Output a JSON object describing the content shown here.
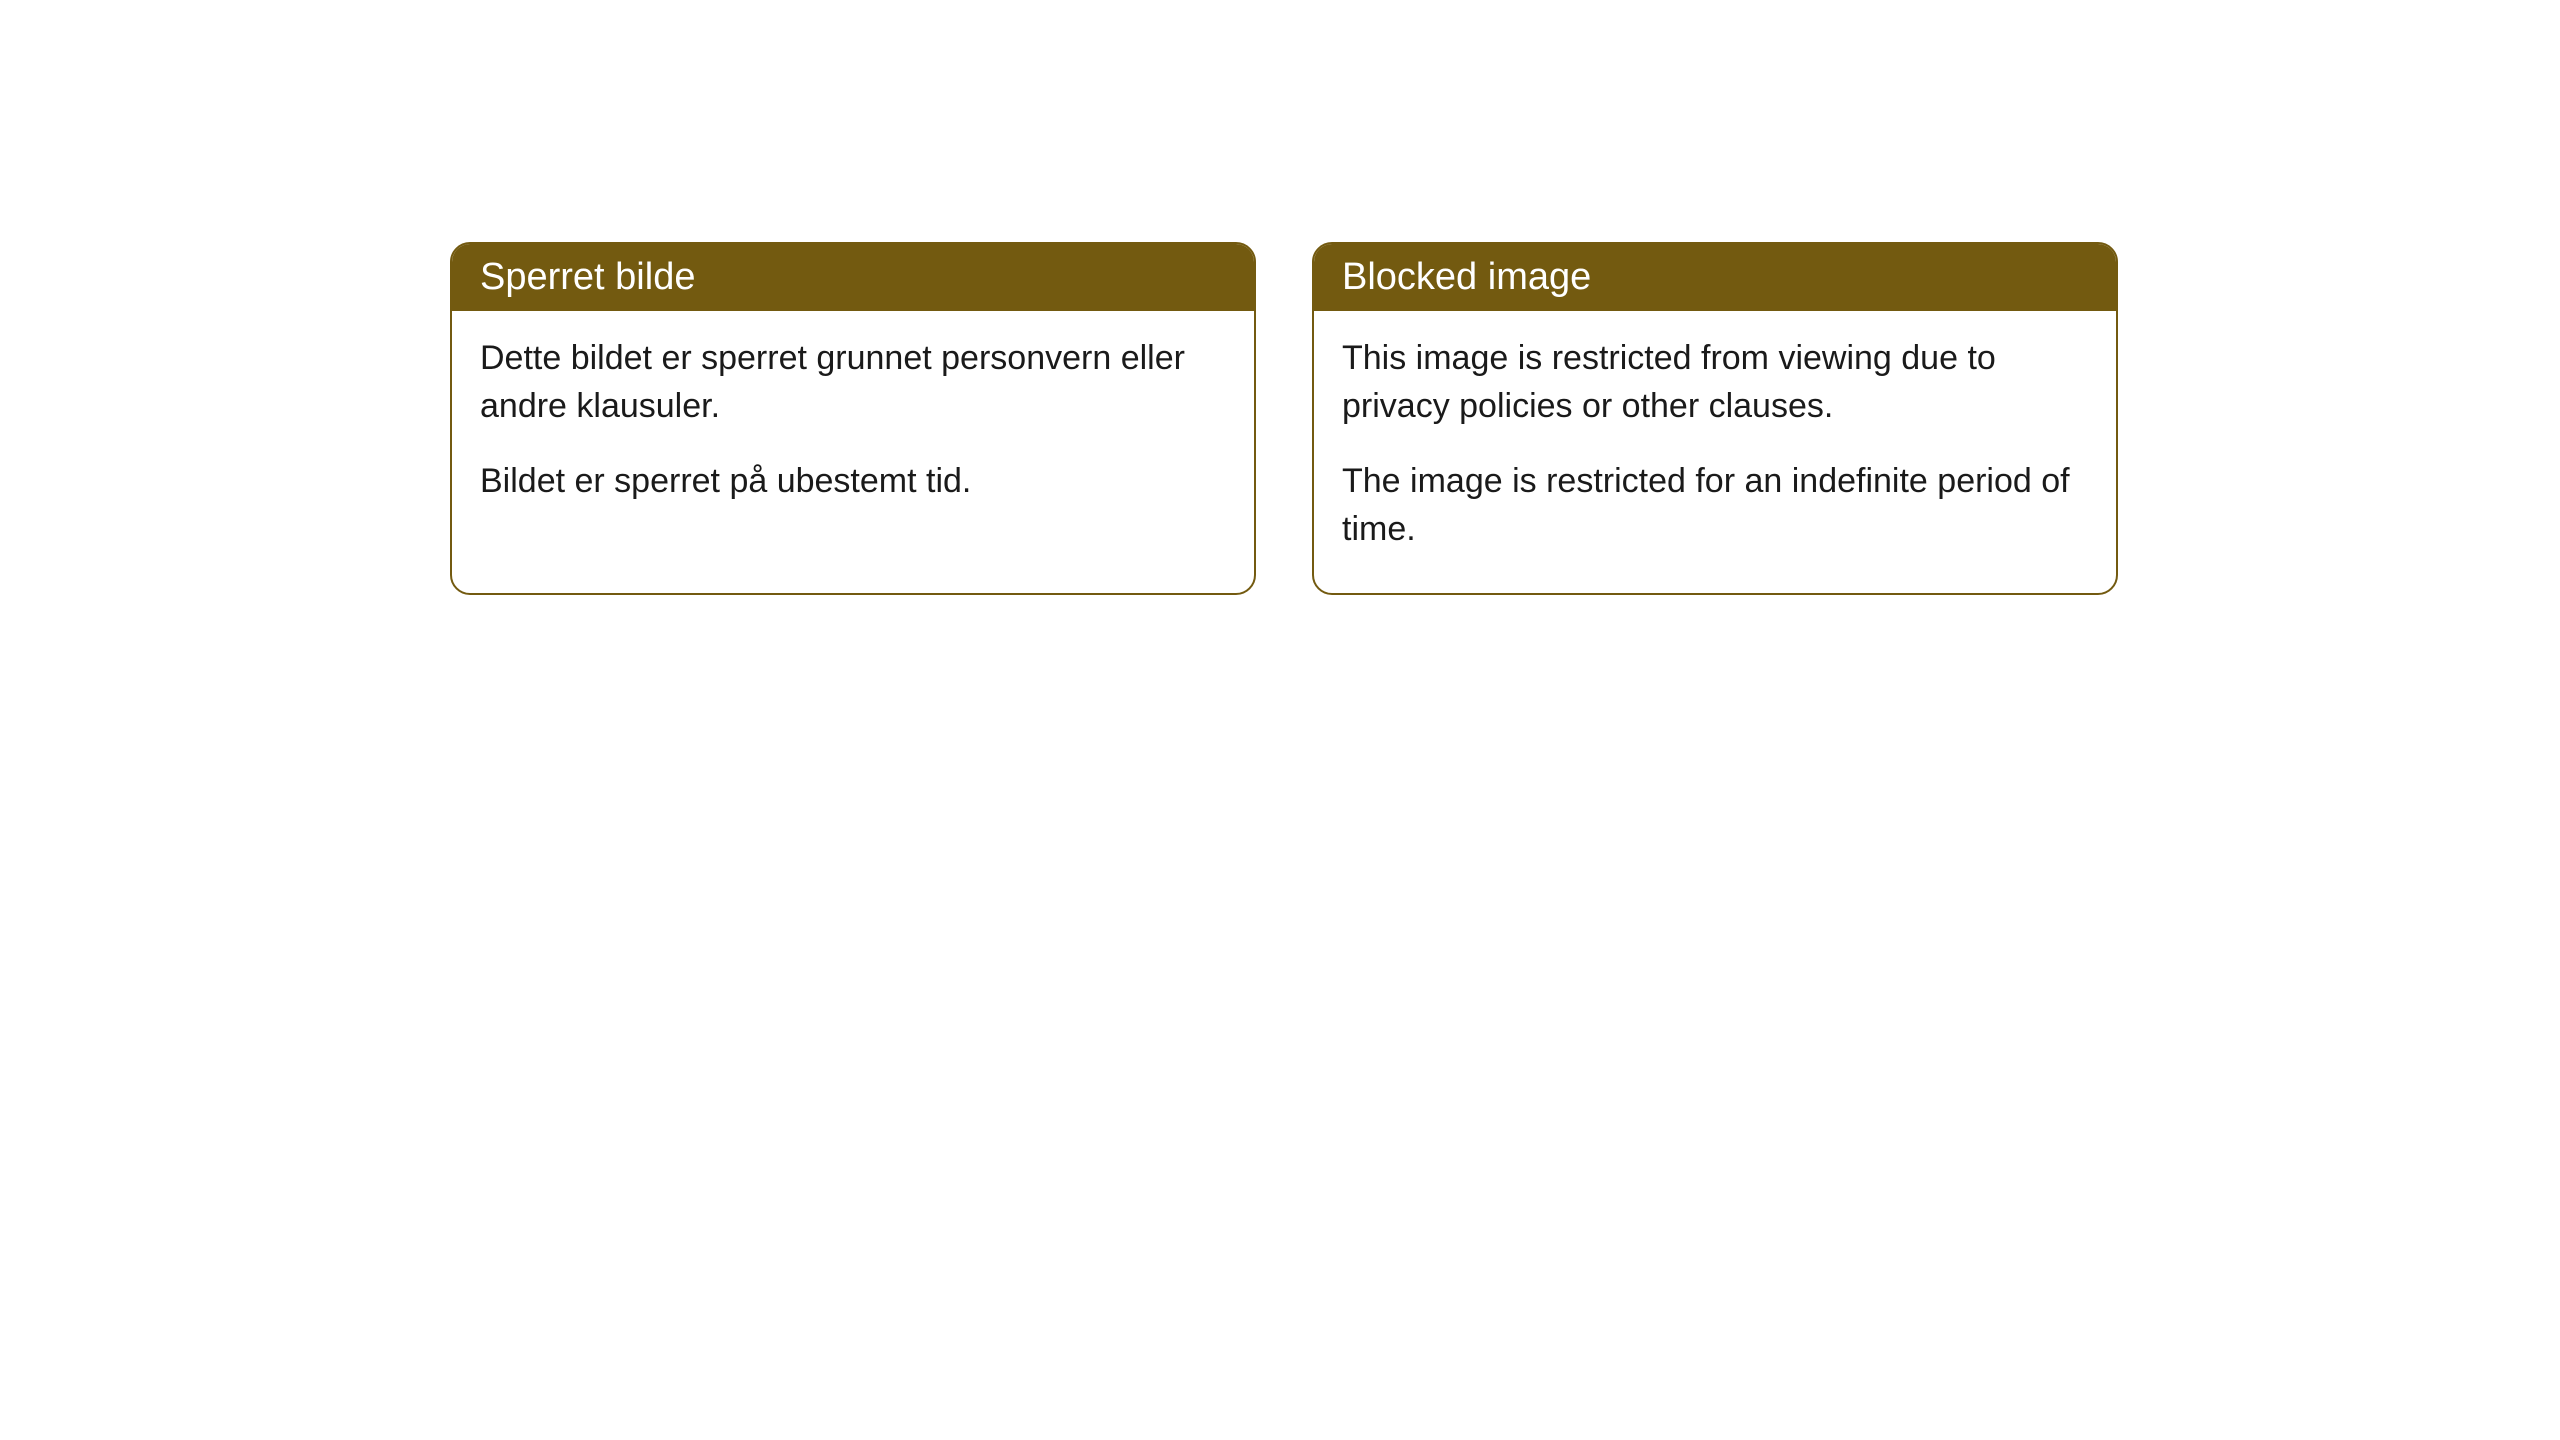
{
  "cards": [
    {
      "title": "Sperret bilde",
      "paragraph1": "Dette bildet er sperret grunnet personvern eller andre klausuler.",
      "paragraph2": "Bildet er sperret på ubestemt tid."
    },
    {
      "title": "Blocked image",
      "paragraph1": "This image is restricted from viewing due to privacy policies or other clauses.",
      "paragraph2": "The image is restricted for an indefinite period of time."
    }
  ],
  "styling": {
    "header_bg_color": "#735a10",
    "header_text_color": "#ffffff",
    "border_color": "#735a10",
    "border_radius": "20px",
    "card_bg_color": "#ffffff",
    "body_text_color": "#1a1a1a",
    "title_fontsize": 38,
    "body_fontsize": 34
  }
}
